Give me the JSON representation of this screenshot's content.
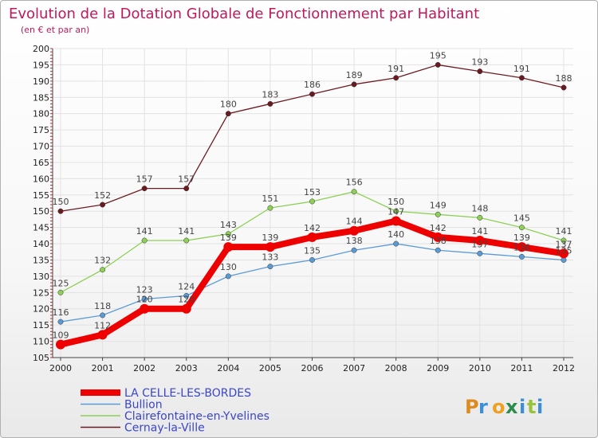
{
  "title": "Evolution de la Dotation Globale de Fonctionnement par Habitant",
  "subtitle": "(en € et par an)",
  "brand": {
    "letters": [
      "P",
      "r",
      "o",
      "x",
      "i",
      "t",
      "i"
    ]
  },
  "chart_data": {
    "type": "line",
    "x": [
      2000,
      2001,
      2002,
      2003,
      2004,
      2005,
      2006,
      2007,
      2008,
      2009,
      2010,
      2011,
      2012
    ],
    "ylim": [
      105,
      200
    ],
    "yticks": [
      105,
      110,
      115,
      120,
      125,
      130,
      135,
      140,
      145,
      150,
      155,
      160,
      165,
      170,
      175,
      180,
      185,
      190,
      195,
      200
    ],
    "legend_position": "bottom-left",
    "series": [
      {
        "name": "Cernay-la-Ville",
        "color": "#6b1a22",
        "values": [
          150,
          152,
          157,
          157,
          180,
          183,
          186,
          189,
          191,
          195,
          193,
          191,
          188
        ]
      },
      {
        "name": "Clairefontaine-en-Yvelines",
        "color": "#8dd055",
        "values": [
          125,
          132,
          141,
          141,
          143,
          151,
          153,
          156,
          150,
          149,
          148,
          145,
          141
        ]
      },
      {
        "name": "Bullion",
        "color": "#5b9bd5",
        "values": [
          116,
          118,
          123,
          124,
          130,
          133,
          135,
          138,
          140,
          138,
          137,
          136,
          135
        ]
      },
      {
        "name": "LA CELLE-LES-BORDES",
        "color": "#ee0000",
        "values": [
          109,
          112,
          120,
          120,
          139,
          139,
          142,
          144,
          147,
          142,
          141,
          139,
          137
        ]
      }
    ],
    "legend_order": [
      "LA CELLE-LES-BORDES",
      "Bullion",
      "Clairefontaine-en-Yvelines",
      "Cernay-la-Ville"
    ]
  }
}
